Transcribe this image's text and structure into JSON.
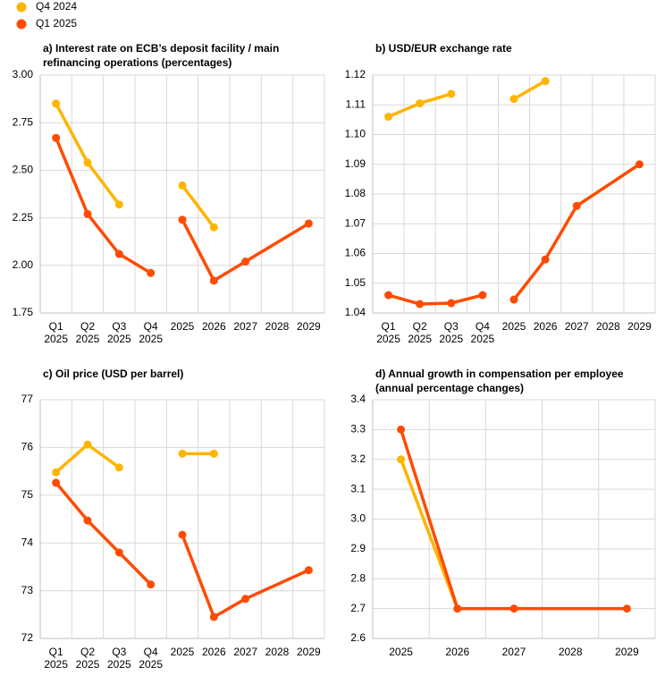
{
  "legend": [
    {
      "name": "Q4 2024",
      "color": "#ffb400"
    },
    {
      "name": "Q1 2025",
      "color": "#ff4b00"
    }
  ],
  "chart_data": [
    {
      "type": "line",
      "title": "a) Interest rate on ECB’s deposit facility / main refinancing operations (percentages)",
      "quarter_categories": [
        "Q1 2025",
        "Q2 2025",
        "Q3 2025",
        "Q4 2025"
      ],
      "annual_x": [
        2025,
        2026,
        2027,
        2029
      ],
      "annual_xticks": [
        2025,
        2026,
        2027,
        2028,
        2029
      ],
      "ylim": [
        1.75,
        3.0
      ],
      "yticks": [
        1.75,
        {
          "value": 2,
          "label": "2.00"
        },
        2.25,
        {
          "value": 2.5,
          "label": "2.50"
        },
        2.75,
        {
          "value": 3,
          "label": "3.00"
        }
      ],
      "grid": true,
      "series": [
        {
          "quarterly": [
            2.85,
            2.54,
            2.32,
            null
          ],
          "annual": [
            2.42,
            2.2,
            null,
            null
          ]
        },
        {
          "quarterly": [
            2.67,
            2.27,
            2.06,
            1.96
          ],
          "annual": [
            2.24,
            1.92,
            2.02,
            2.22
          ]
        }
      ]
    },
    {
      "type": "line",
      "title": "b) USD/EUR exchange rate",
      "quarter_categories": [
        "Q1 2025",
        "Q2 2025",
        "Q3 2025",
        "Q4 2025"
      ],
      "annual_x": [
        2025,
        2026,
        2027,
        2029
      ],
      "annual_xticks": [
        2025,
        2026,
        2027,
        2028,
        2029
      ],
      "ylim": [
        1.04,
        1.12
      ],
      "yticks": [
        1.04,
        1.05,
        1.06,
        1.07,
        1.08,
        1.09,
        {
          "value": 1.1,
          "label": "1.10"
        },
        1.11,
        1.12
      ],
      "grid": true,
      "series": [
        {
          "quarterly": [
            1.106,
            1.1105,
            1.1137,
            null
          ],
          "annual": [
            1.112,
            1.118,
            null,
            null
          ]
        },
        {
          "quarterly": [
            1.046,
            1.043,
            1.0433,
            1.046
          ],
          "annual": [
            1.0445,
            1.058,
            1.076,
            1.09
          ]
        }
      ]
    },
    {
      "type": "line",
      "title": "c) Oil price (USD per barrel)",
      "quarter_categories": [
        "Q1 2025",
        "Q2 2025",
        "Q3 2025",
        "Q4 2025"
      ],
      "annual_x": [
        2025,
        2026,
        2027,
        2029
      ],
      "annual_xticks": [
        2025,
        2026,
        2027,
        2028,
        2029
      ],
      "ylim": [
        72,
        77
      ],
      "yticks": [
        72,
        73,
        74,
        75,
        76,
        77
      ],
      "grid": true,
      "series": [
        {
          "quarterly": [
            75.48,
            76.06,
            75.58,
            null
          ],
          "annual": [
            75.87,
            75.87,
            null,
            null
          ]
        },
        {
          "quarterly": [
            75.26,
            74.47,
            73.8,
            73.13
          ],
          "annual": [
            74.17,
            72.45,
            72.83,
            73.43
          ]
        }
      ]
    },
    {
      "type": "line",
      "title": "d) Annual growth in compensation per employee (annual percentage changes)",
      "x": [
        2025,
        2026,
        2027,
        2029
      ],
      "xlim": [
        2024.5,
        2029.5
      ],
      "xticks": [
        2025,
        2026,
        2027,
        2028,
        2029
      ],
      "ylim": [
        2.6,
        3.4
      ],
      "yticks": [
        2.6,
        2.7,
        2.8,
        2.9,
        {
          "value": 3,
          "label": "3.0"
        },
        3.1,
        3.2,
        3.3,
        3.4
      ],
      "grid": true,
      "series": [
        {
          "values": [
            3.2,
            2.7,
            null,
            null
          ]
        },
        {
          "values": [
            3.3,
            2.7,
            2.7,
            2.7
          ]
        }
      ]
    }
  ]
}
